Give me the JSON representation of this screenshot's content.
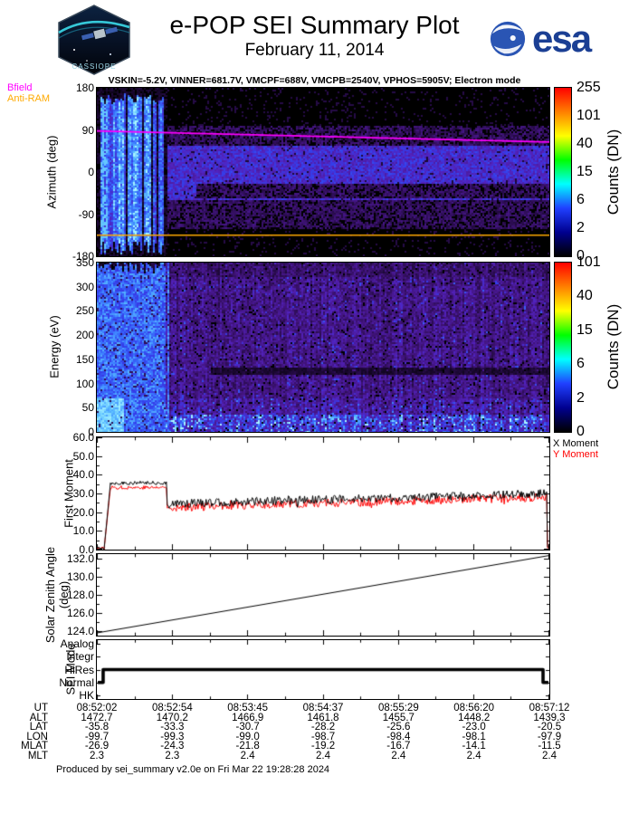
{
  "header": {
    "title": "e-POP SEI Summary Plot",
    "date": "February 11, 2014",
    "mission_patch_text": "CASSIOPE",
    "esa_logo_text": "esa",
    "esa_blue": "#1b3f94",
    "settings_line": "VSKIN=-5.2V, VINNER=681.7V, VMCPF=688V, VMCPB=2540V, VPHOS=5905V; Electron mode"
  },
  "chart_data": [
    {
      "id": "azimuth_spectrogram",
      "type": "heatmap",
      "ylabel": "Azimuth (deg)",
      "ylim": [
        -180,
        180
      ],
      "yticks": [
        "180",
        "90",
        "0",
        "-90",
        "-180"
      ],
      "xticks_ut": [
        "08:52:02",
        "08:52:54",
        "08:53:45",
        "08:54:37",
        "08:55:29",
        "08:56:20",
        "08:57:12"
      ],
      "colorbar": {
        "label": "Counts (DN)",
        "ticks": [
          "255",
          "101",
          "40",
          "15",
          "6",
          "2",
          "0"
        ],
        "gradient_top_to_bottom": [
          "#ff0000",
          "#ff7f00",
          "#ffff00",
          "#00ff00",
          "#00ffff",
          "#2040ff",
          "#000090",
          "#000000"
        ]
      },
      "legend": [
        {
          "label": "Bfield",
          "color": "#ff00ff"
        },
        {
          "label": "Anti-RAM",
          "color": "#ffaa00"
        }
      ],
      "overlays": {
        "bfield_deg": {
          "start": 88,
          "end": 64
        },
        "antiram_deg": -135
      },
      "features": {
        "startup_end_frac": 0.152,
        "bright_band_deg": [
          -60,
          55
        ],
        "diffuse_band_deg": [
          -120,
          100
        ],
        "dark_lane_deg": [
          -55,
          -24
        ]
      }
    },
    {
      "id": "energy_spectrogram",
      "type": "heatmap",
      "ylabel": "Energy (eV)",
      "ylim": [
        0,
        350
      ],
      "yticks": [
        "350",
        "300",
        "250",
        "200",
        "150",
        "100",
        "50",
        "0"
      ],
      "colorbar": {
        "label": "Counts (DN)",
        "ticks": [
          "101",
          "40",
          "15",
          "6",
          "2",
          "0"
        ],
        "gradient_top_to_bottom": [
          "#ff0000",
          "#ff7f00",
          "#ffff00",
          "#00ff00",
          "#00ffff",
          "#2040ff",
          "#000090",
          "#000000"
        ]
      },
      "features": {
        "startup_end_frac": 0.152,
        "low_energy_bright_band_ev": 35,
        "dark_lane_ev": [
          118,
          132
        ]
      }
    },
    {
      "id": "first_moment",
      "type": "line",
      "ylabel": "First Moment",
      "ylim": [
        0,
        60
      ],
      "yticks": [
        "60.0",
        "50.0",
        "40.0",
        "30.0",
        "20.0",
        "10.0",
        "0.0"
      ],
      "series": [
        {
          "name": "X Moment",
          "color": "#000000"
        },
        {
          "name": "Y Moment",
          "color": "#ff0000"
        }
      ],
      "profile": {
        "initial_value": 0,
        "plateau_value": 35,
        "plateau_frac": [
          0.03,
          0.155
        ],
        "dip_value": 22,
        "final_value": 30,
        "noise_amplitude": 2.5
      }
    },
    {
      "id": "solar_zenith_angle",
      "type": "line",
      "ylabel": "Solar Zenith Angle (deg)",
      "ylim": [
        123.5,
        132.5
      ],
      "yticks": [
        "132.0",
        "130.0",
        "128.0",
        "126.0",
        "124.0"
      ],
      "line": {
        "start_deg": 123.8,
        "end_deg": 132.35,
        "color": "#000000"
      }
    },
    {
      "id": "sei_mode",
      "type": "step",
      "ylabel": "SEI Mode",
      "categories": [
        "Analog",
        "Integr",
        "HiRes",
        "Normal",
        "HK"
      ],
      "segments": [
        {
          "from_frac": 0,
          "to_frac": 0.012,
          "mode": "Normal"
        },
        {
          "from_frac": 0.012,
          "to_frac": 0.988,
          "mode": "HiRes"
        },
        {
          "from_frac": 0.988,
          "to_frac": 1,
          "mode": "Normal"
        }
      ],
      "line_color": "#000000"
    }
  ],
  "table": {
    "rows": [
      {
        "label": "UT",
        "values": [
          "08:52:02",
          "08:52:54",
          "08:53:45",
          "08:54:37",
          "08:55:29",
          "08:56:20",
          "08:57:12"
        ]
      },
      {
        "label": "ALT",
        "values": [
          "1472.7",
          "1470.2",
          "1466.9",
          "1461.8",
          "1455.7",
          "1448.2",
          "1439.3"
        ]
      },
      {
        "label": "LAT",
        "values": [
          "-35.8",
          "-33.3",
          "-30.7",
          "-28.2",
          "-25.6",
          "-23.0",
          "-20.5"
        ]
      },
      {
        "label": "LON",
        "values": [
          "-99.7",
          "-99.3",
          "-99.0",
          "-98.7",
          "-98.4",
          "-98.1",
          "-97.9"
        ]
      },
      {
        "label": "MLAT",
        "values": [
          "-26.9",
          "-24.3",
          "-21.8",
          "-19.2",
          "-16.7",
          "-14.1",
          "-11.5"
        ]
      },
      {
        "label": "MLT",
        "values": [
          "2.3",
          "2.3",
          "2.4",
          "2.4",
          "2.4",
          "2.4",
          "2.4"
        ]
      }
    ]
  },
  "footer": {
    "produced_by": "Produced by sei_summary v2.0e on Fri Mar 22 19:28:28 2024"
  }
}
